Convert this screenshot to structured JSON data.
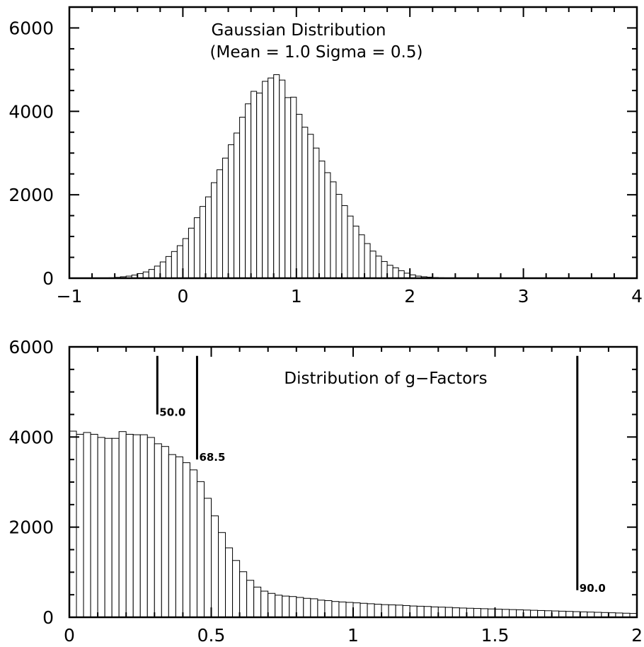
{
  "chart_data": [
    {
      "type": "bar",
      "title_lines": [
        "Gaussian Distribution",
        "(Mean = 1.0   Sigma = 0.5)"
      ],
      "xlabel": "",
      "ylabel": "",
      "xlim": [
        -1,
        4
      ],
      "ylim": [
        0,
        6500
      ],
      "bin_width": 0.05,
      "bin_start": -0.7,
      "xticks": [
        -1,
        0,
        1,
        2,
        3,
        4
      ],
      "xtick_labels": [
        "−1",
        "0",
        "1",
        "2",
        "3",
        "4"
      ],
      "yticks": [
        0,
        2000,
        4000,
        6000
      ],
      "ytick_labels": [
        "0",
        "2000",
        "4000",
        "6000"
      ],
      "values": [
        5,
        10,
        20,
        35,
        50,
        75,
        110,
        150,
        210,
        290,
        390,
        520,
        640,
        780,
        950,
        1200,
        1450,
        1720,
        1950,
        2290,
        2600,
        2880,
        3200,
        3480,
        3860,
        4180,
        4480,
        4440,
        4720,
        4800,
        4880,
        4750,
        4330,
        4340,
        3930,
        3620,
        3450,
        3120,
        2810,
        2530,
        2310,
        2010,
        1740,
        1490,
        1250,
        1040,
        830,
        650,
        530,
        400,
        310,
        250,
        180,
        120,
        80,
        50,
        35,
        25,
        15,
        10
      ]
    },
    {
      "type": "bar",
      "title_lines": [
        "Distribution of g−Factors"
      ],
      "xlabel": "",
      "ylabel": "",
      "xlim": [
        0,
        2
      ],
      "ylim": [
        0,
        6000
      ],
      "bin_width": 0.025,
      "bin_start": 0,
      "xticks": [
        0,
        0.5,
        1,
        1.5,
        2
      ],
      "xtick_labels": [
        "0",
        "0.5",
        "1",
        "1.5",
        "2"
      ],
      "yticks": [
        0,
        2000,
        4000,
        6000
      ],
      "ytick_labels": [
        "0",
        "2000",
        "4000",
        "6000"
      ],
      "values": [
        4130,
        4060,
        4100,
        4060,
        3990,
        3970,
        3970,
        4120,
        4060,
        4050,
        4050,
        3990,
        3850,
        3790,
        3610,
        3560,
        3430,
        3270,
        3010,
        2640,
        2250,
        1880,
        1540,
        1260,
        1010,
        820,
        670,
        580,
        530,
        490,
        470,
        460,
        440,
        420,
        410,
        380,
        370,
        350,
        340,
        330,
        320,
        310,
        300,
        290,
        280,
        275,
        270,
        260,
        250,
        245,
        240,
        230,
        225,
        220,
        210,
        205,
        200,
        195,
        190,
        185,
        180,
        175,
        170,
        165,
        160,
        155,
        150,
        145,
        140,
        135,
        130,
        125,
        120,
        115,
        110,
        105,
        100,
        95,
        90,
        85
      ],
      "annotations": [
        {
          "x": 0.31,
          "label": "50.0",
          "y_top": 5800,
          "y_bottom": 4500
        },
        {
          "x": 0.45,
          "label": "68.5",
          "y_top": 5800,
          "y_bottom": 3500
        },
        {
          "x": 1.79,
          "label": "90.0",
          "y_top": 5800,
          "y_bottom": 600
        }
      ]
    }
  ]
}
